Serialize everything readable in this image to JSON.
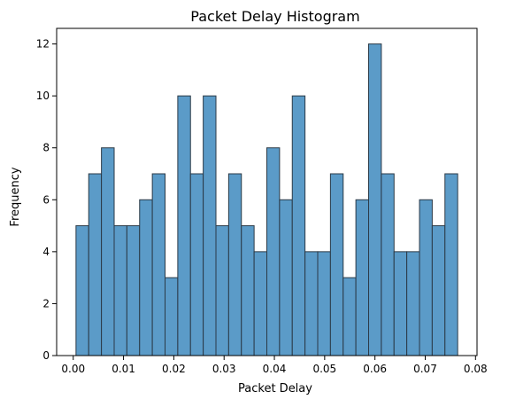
{
  "chart_data": {
    "type": "bar",
    "title": "Packet Delay Histogram",
    "xlabel": "Packet Delay",
    "ylabel": "Frequency",
    "xlim": [
      -0.0033,
      0.0803
    ],
    "ylim": [
      0,
      12.6
    ],
    "bin_start": 0.00055,
    "bin_width": 0.00253,
    "values": [
      5,
      7,
      8,
      5,
      5,
      6,
      7,
      3,
      10,
      7,
      10,
      5,
      7,
      5,
      4,
      8,
      6,
      10,
      4,
      4,
      7,
      3,
      6,
      12,
      7,
      4,
      4,
      6,
      5,
      7
    ],
    "x_ticks": [
      0.0,
      0.01,
      0.02,
      0.03,
      0.04,
      0.05,
      0.06,
      0.07,
      0.08
    ],
    "x_tick_labels": [
      "0.00",
      "0.01",
      "0.02",
      "0.03",
      "0.04",
      "0.05",
      "0.06",
      "0.07",
      "0.08"
    ],
    "y_ticks": [
      0,
      2,
      4,
      6,
      8,
      10,
      12
    ],
    "y_tick_labels": [
      "0",
      "2",
      "4",
      "6",
      "8",
      "10",
      "12"
    ],
    "grid": false,
    "bar_color": "#5b9bc8",
    "edge_color": "#2b3a47",
    "colors": {
      "axis": "#000000",
      "background": "#ffffff"
    }
  }
}
